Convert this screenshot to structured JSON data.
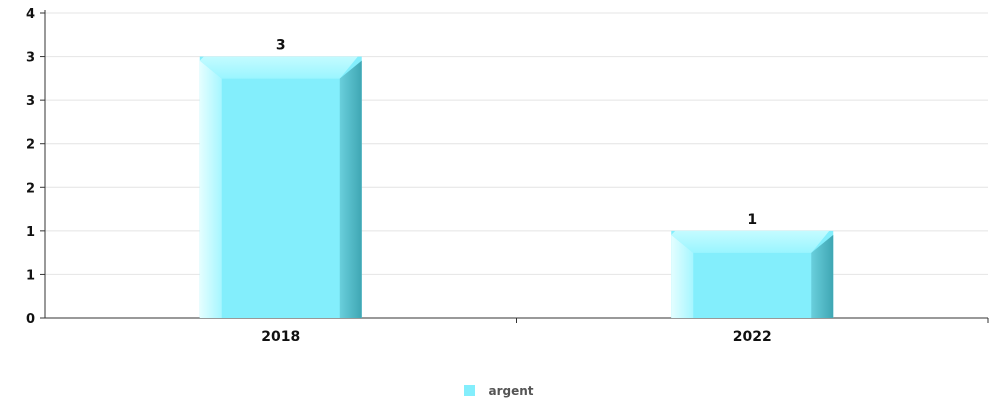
{
  "chart_data": {
    "type": "bar",
    "categories": [
      "2018",
      "2022"
    ],
    "series": [
      {
        "name": "argent",
        "values": [
          3,
          1
        ],
        "color": "#83eefc"
      }
    ],
    "data_labels": [
      "3",
      "1"
    ],
    "y_tick_labels": [
      "0",
      "1",
      "1",
      "2",
      "2",
      "3",
      "3",
      "4"
    ],
    "ylim": [
      0,
      3.5
    ],
    "grid": true,
    "legend_position": "bottom-center"
  }
}
